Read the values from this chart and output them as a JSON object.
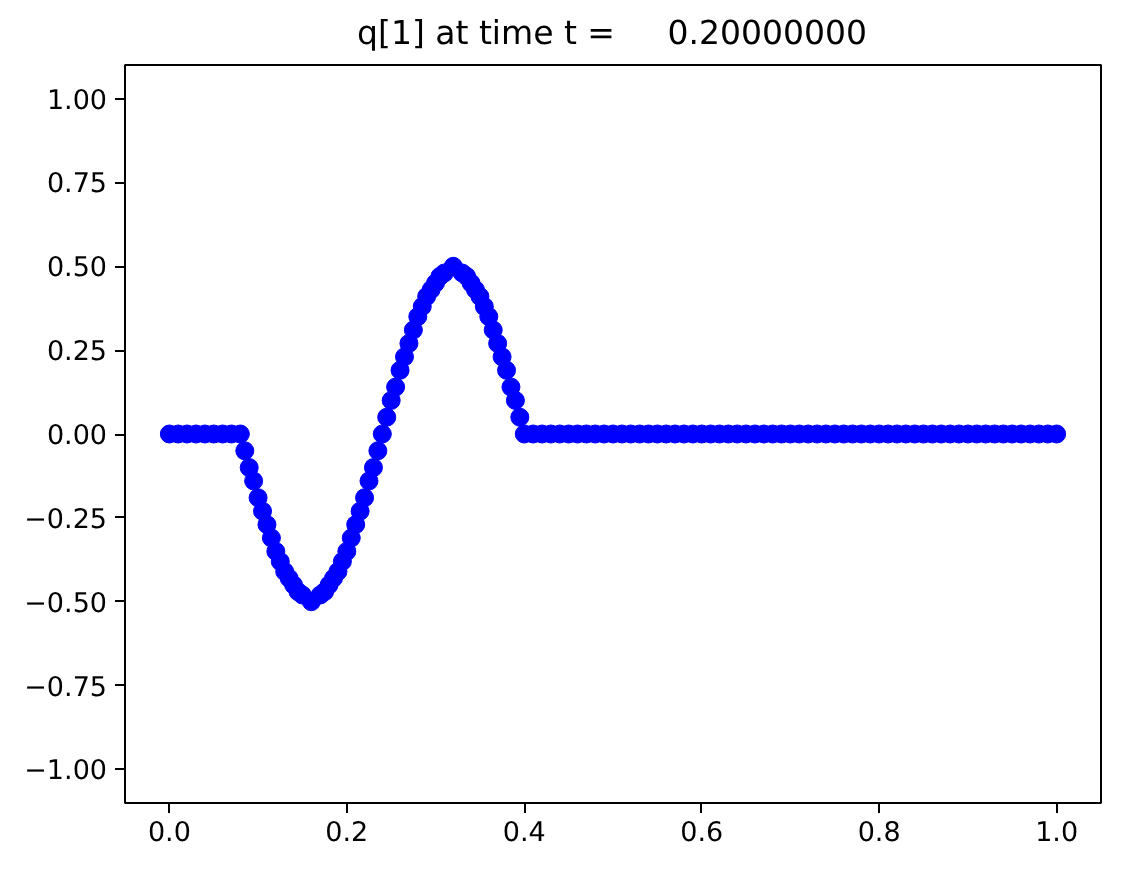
{
  "chart_data": {
    "type": "scatter",
    "title": "q[1] at time t =     0.20000000",
    "x": [
      0.0,
      0.01,
      0.02,
      0.03,
      0.04,
      0.05,
      0.06,
      0.07,
      0.08,
      0.085,
      0.09,
      0.095,
      0.1,
      0.105,
      0.11,
      0.115,
      0.12,
      0.125,
      0.13,
      0.135,
      0.14,
      0.145,
      0.15,
      0.16,
      0.17,
      0.175,
      0.18,
      0.185,
      0.19,
      0.195,
      0.2,
      0.205,
      0.21,
      0.215,
      0.22,
      0.225,
      0.23,
      0.235,
      0.24,
      0.245,
      0.25,
      0.255,
      0.26,
      0.265,
      0.27,
      0.275,
      0.28,
      0.285,
      0.29,
      0.295,
      0.3,
      0.305,
      0.31,
      0.32,
      0.33,
      0.335,
      0.34,
      0.345,
      0.35,
      0.355,
      0.36,
      0.365,
      0.37,
      0.375,
      0.38,
      0.385,
      0.39,
      0.395,
      0.4,
      0.41,
      0.42,
      0.43,
      0.44,
      0.45,
      0.46,
      0.47,
      0.48,
      0.49,
      0.5,
      0.51,
      0.52,
      0.53,
      0.54,
      0.55,
      0.56,
      0.57,
      0.58,
      0.59,
      0.6,
      0.61,
      0.62,
      0.63,
      0.64,
      0.65,
      0.66,
      0.67,
      0.68,
      0.69,
      0.7,
      0.71,
      0.72,
      0.73,
      0.74,
      0.75,
      0.76,
      0.77,
      0.78,
      0.79,
      0.8,
      0.81,
      0.82,
      0.83,
      0.84,
      0.85,
      0.86,
      0.87,
      0.88,
      0.89,
      0.9,
      0.91,
      0.92,
      0.93,
      0.94,
      0.95,
      0.96,
      0.97,
      0.98,
      0.99,
      1.0
    ],
    "values": [
      0,
      0,
      0,
      0,
      0,
      0,
      0,
      0,
      0,
      -0.05,
      -0.1,
      -0.14,
      -0.19,
      -0.23,
      -0.27,
      -0.31,
      -0.35,
      -0.38,
      -0.41,
      -0.43,
      -0.45,
      -0.47,
      -0.48,
      -0.5,
      -0.48,
      -0.47,
      -0.45,
      -0.43,
      -0.41,
      -0.38,
      -0.35,
      -0.31,
      -0.27,
      -0.23,
      -0.19,
      -0.14,
      -0.1,
      -0.05,
      0,
      0.05,
      0.1,
      0.14,
      0.19,
      0.23,
      0.27,
      0.31,
      0.35,
      0.38,
      0.41,
      0.43,
      0.45,
      0.47,
      0.48,
      0.5,
      0.48,
      0.47,
      0.45,
      0.43,
      0.41,
      0.38,
      0.35,
      0.31,
      0.27,
      0.23,
      0.19,
      0.14,
      0.1,
      0.05,
      0,
      0,
      0,
      0,
      0,
      0,
      0,
      0,
      0,
      0,
      0,
      0,
      0,
      0,
      0,
      0,
      0,
      0,
      0,
      0,
      0,
      0,
      0,
      0,
      0,
      0,
      0,
      0,
      0,
      0,
      0,
      0,
      0,
      0,
      0,
      0,
      0,
      0,
      0,
      0,
      0,
      0,
      0,
      0,
      0,
      0,
      0,
      0,
      0,
      0,
      0,
      0,
      0,
      0,
      0,
      0,
      0,
      0,
      0,
      0,
      0
    ],
    "color": "#0000ff",
    "marker": "circle",
    "grid": false,
    "xlim": [
      -0.05,
      1.05
    ],
    "ylim": [
      -1.1,
      1.1
    ],
    "xticks": [
      {
        "value": 0,
        "label": "0.0"
      },
      {
        "value": 0.2,
        "label": "0.2"
      },
      {
        "value": 0.4,
        "label": "0.4"
      },
      {
        "value": 0.6,
        "label": "0.6"
      },
      {
        "value": 0.8,
        "label": "0.8"
      },
      {
        "value": 1,
        "label": "1.0"
      }
    ],
    "yticks": [
      {
        "value": -1,
        "label": "−1.00"
      },
      {
        "value": -0.75,
        "label": "−0.75"
      },
      {
        "value": -0.5,
        "label": "−0.50"
      },
      {
        "value": -0.25,
        "label": "−0.25"
      },
      {
        "value": 0,
        "label": "0.00"
      },
      {
        "value": 0.25,
        "label": "0.25"
      },
      {
        "value": 0.5,
        "label": "0.50"
      },
      {
        "value": 0.75,
        "label": "0.75"
      },
      {
        "value": 1,
        "label": "1.00"
      }
    ]
  }
}
